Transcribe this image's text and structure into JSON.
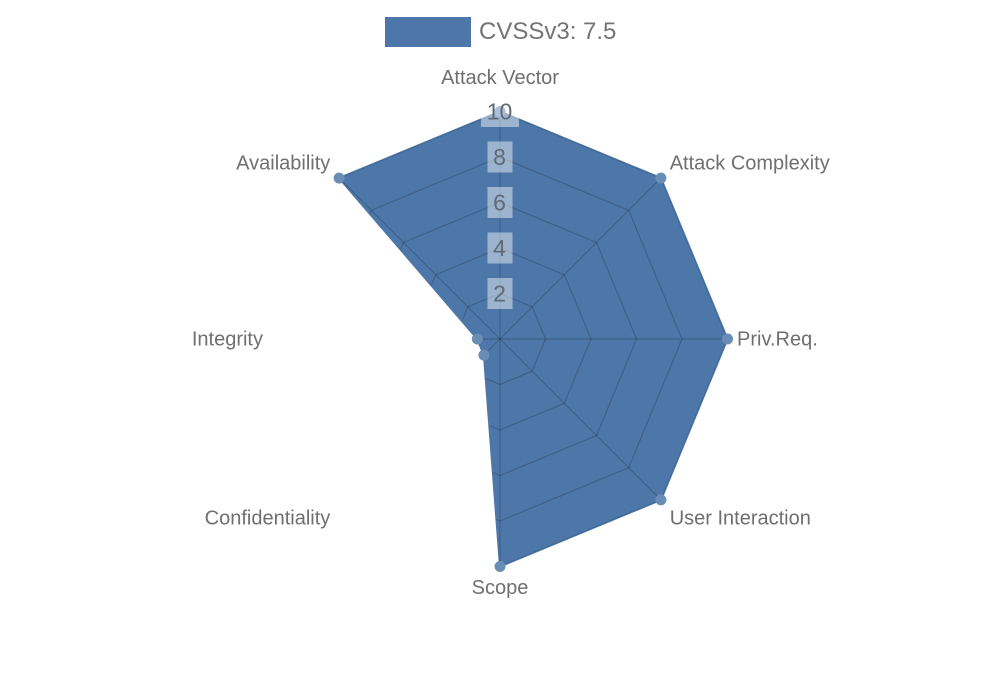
{
  "legend": {
    "items": [
      {
        "label": "CVSSv3: 7.5",
        "swatch_color": "#4d77a8"
      }
    ]
  },
  "chart_data": {
    "type": "radar",
    "title": "",
    "categories": [
      "Attack Vector",
      "Attack Complexity",
      "Priv.Req.",
      "User Interaction",
      "Scope",
      "Confidentiality",
      "Integrity",
      "Availability"
    ],
    "series": [
      {
        "name": "CVSSv3: 7.5",
        "values": [
          10,
          10,
          10,
          10,
          10,
          1,
          1,
          10
        ],
        "color": "#4d77a8",
        "marker_color": "#6a8db6"
      }
    ],
    "rmin": 0,
    "rmax": 10,
    "tick_step": 2,
    "ticks": [
      2,
      4,
      6,
      8,
      10
    ],
    "grid": "polygon",
    "grid_visible_inside_fill_only": true,
    "legend_position": "top"
  },
  "colors": {
    "background": "#ffffff",
    "fill": "#4d77a8",
    "marker": "#6a8db6",
    "grid_line": "rgba(0,0,0,0.18)",
    "tick_backdrop": "rgba(255,255,255,0.45)",
    "tick_text": "#5e6a76",
    "axis_label": "#6f6f6f",
    "legend_text": "#747474"
  }
}
